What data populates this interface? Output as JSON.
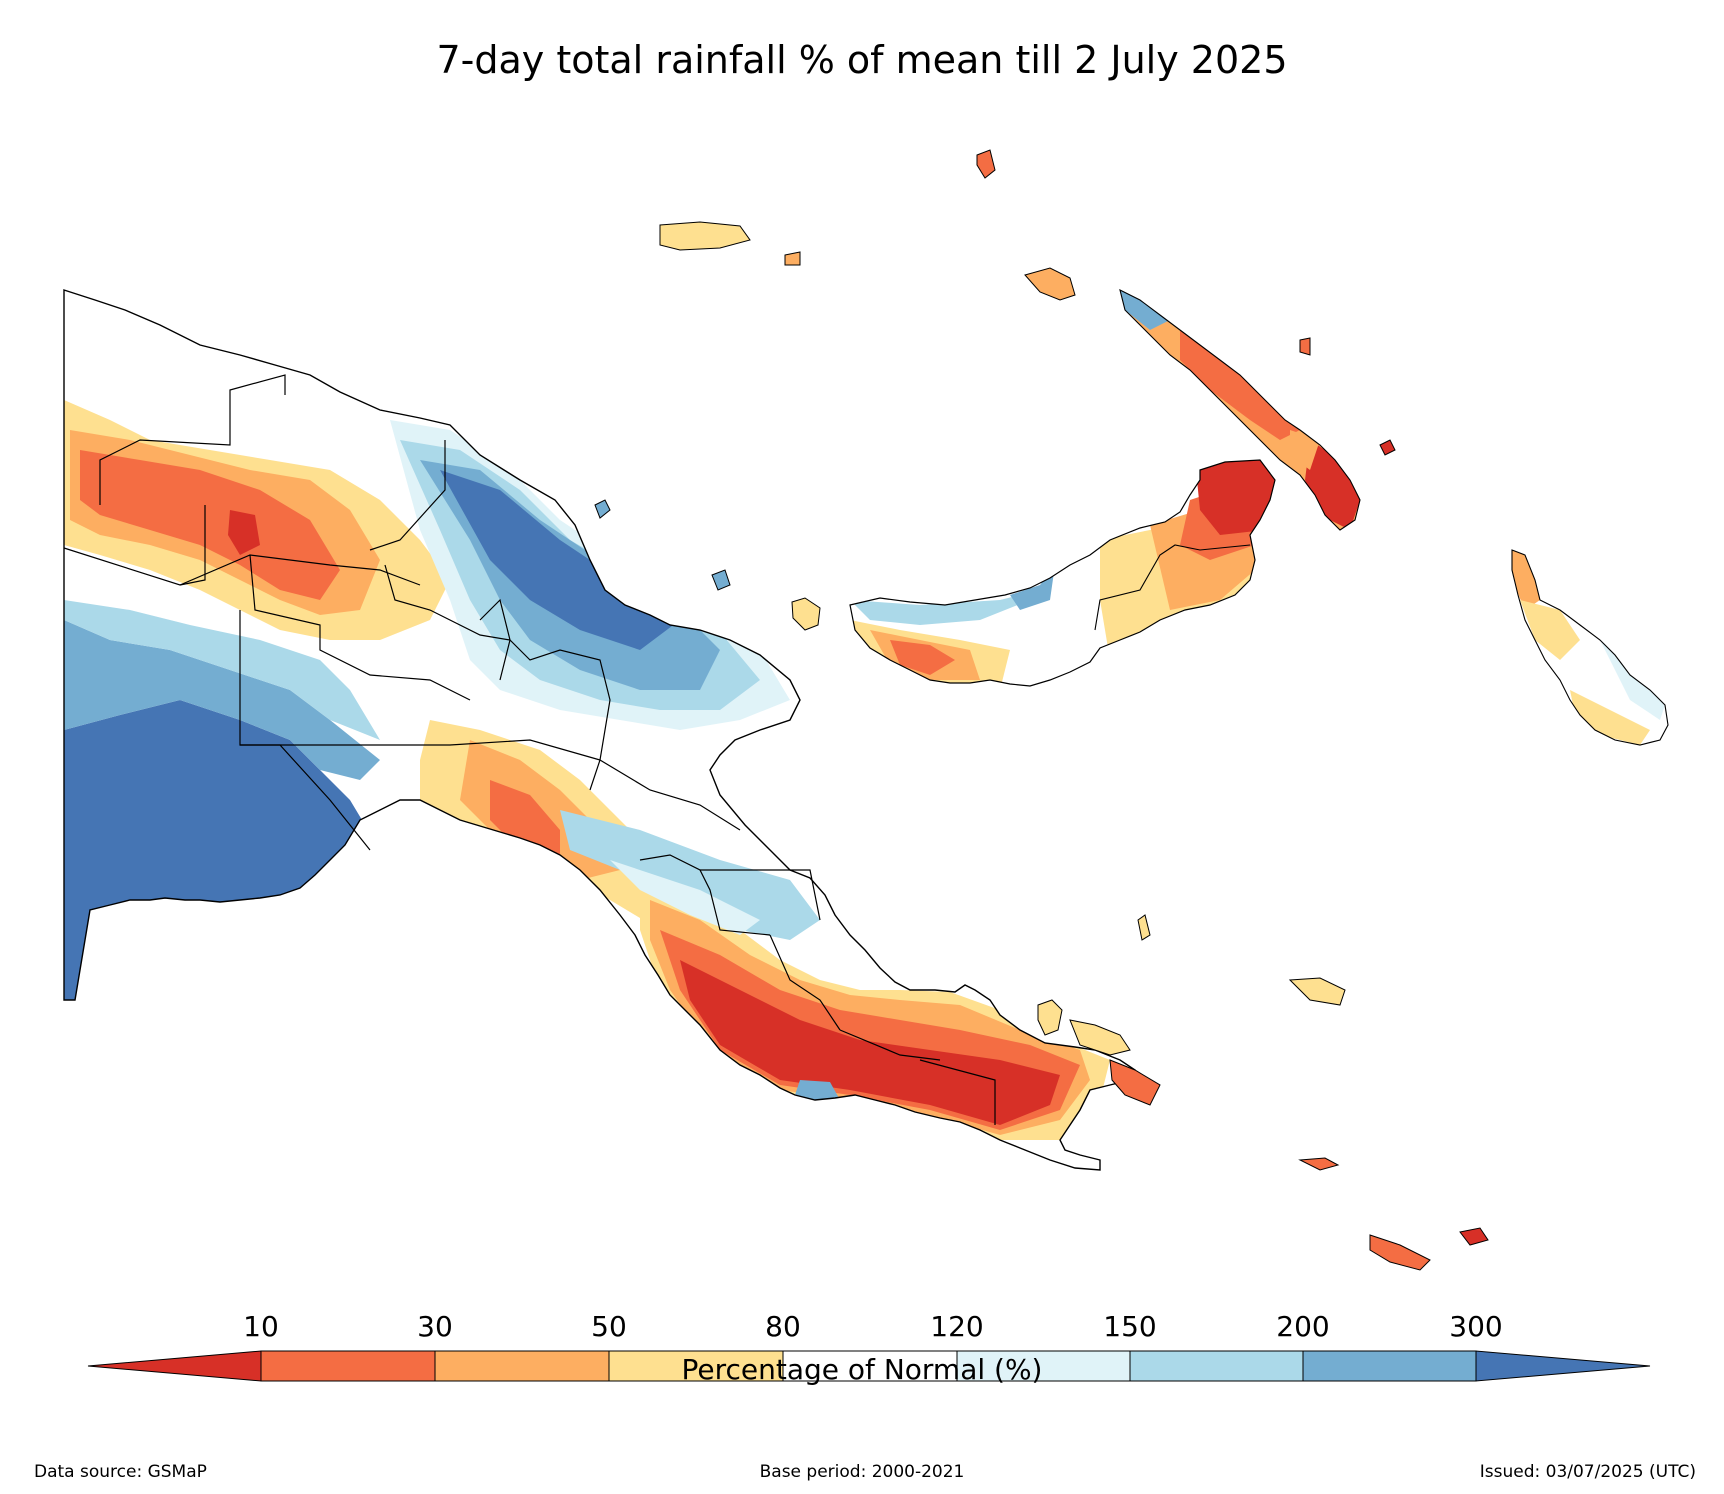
{
  "title": "7-day total rainfall % of mean till 2 July 2025",
  "colors": {
    "lt10": "#d73027",
    "r10_30": "#f46d43",
    "r30_50": "#fdae61",
    "r50_80": "#fee090",
    "r80_120": "#ffffff",
    "r120_150": "#e0f3f8",
    "r150_200": "#abd9e9",
    "r200_300": "#74add1",
    "gt300": "#4575b4"
  },
  "colorbar": {
    "ticks": [
      "10",
      "30",
      "50",
      "80",
      "120",
      "150",
      "200",
      "300"
    ],
    "label": "Percentage of Normal (%)"
  },
  "footer": {
    "left": "Data source: GSMaP",
    "center": "Base period: 2000-2021",
    "right": "Issued: 03/07/2025 (UTC)"
  }
}
